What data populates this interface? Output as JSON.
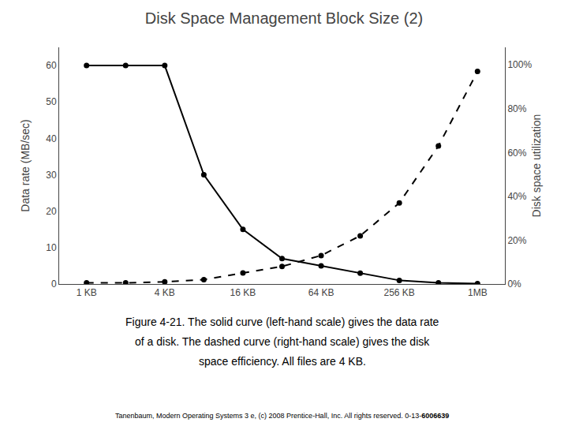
{
  "chart_data": {
    "type": "line",
    "title": "Disk Space Management Block Size (2)",
    "y_label": "Data rate (MB/sec)",
    "y2_label": "Disk space utilization",
    "x": [
      0,
      0.5,
      1.0,
      1.5,
      2.0,
      2.5,
      3.0,
      3.5,
      4.0,
      4.5,
      5.0
    ],
    "xlim": [
      -0.35,
      5.35
    ],
    "xticks": [
      {
        "value": 0,
        "label": "1 KB"
      },
      {
        "value": 1,
        "label": "4 KB"
      },
      {
        "value": 2,
        "label": "16 KB"
      },
      {
        "value": 3,
        "label": "64 KB"
      },
      {
        "value": 4,
        "label": "256 KB"
      },
      {
        "value": 5,
        "label": "1MB"
      }
    ],
    "ylim": [
      0,
      65
    ],
    "yticks": [
      0,
      10,
      20,
      30,
      40,
      50,
      60
    ],
    "y2lim": [
      0,
      108
    ],
    "y2ticks": [
      {
        "value": 0,
        "label": "0%"
      },
      {
        "value": 20,
        "label": "20%"
      },
      {
        "value": 40,
        "label": "40%"
      },
      {
        "value": 60,
        "label": "60%"
      },
      {
        "value": 80,
        "label": "80%"
      },
      {
        "value": 100,
        "label": "100%"
      }
    ],
    "series": [
      {
        "color": "#000000",
        "line_style": "solid",
        "marker": "circle",
        "values": [
          60,
          60,
          60,
          30,
          15,
          7,
          5,
          3,
          1,
          0.3,
          0.1
        ]
      },
      {
        "color": "#000000",
        "line_style": "dashed",
        "marker": "circle",
        "axis": "y2",
        "values": [
          0.5,
          0.5,
          1.0,
          2.0,
          5.0,
          8.0,
          13.0,
          22.0,
          37.0,
          63.0,
          97.0
        ]
      }
    ],
    "annotations": [
      "Figure 4-21. The solid curve (left-hand scale) gives the data rate",
      "of a disk. The dashed curve (right-hand scale) gives the disk",
      "space efficiency. All files are 4 KB.",
      "Tanenbaum, Modern Operating Systems 3 e, (c) 2008 Prentice-Hall, Inc. All rights reserved. 0-13-",
      "6006639"
    ],
    "grid": false
  }
}
